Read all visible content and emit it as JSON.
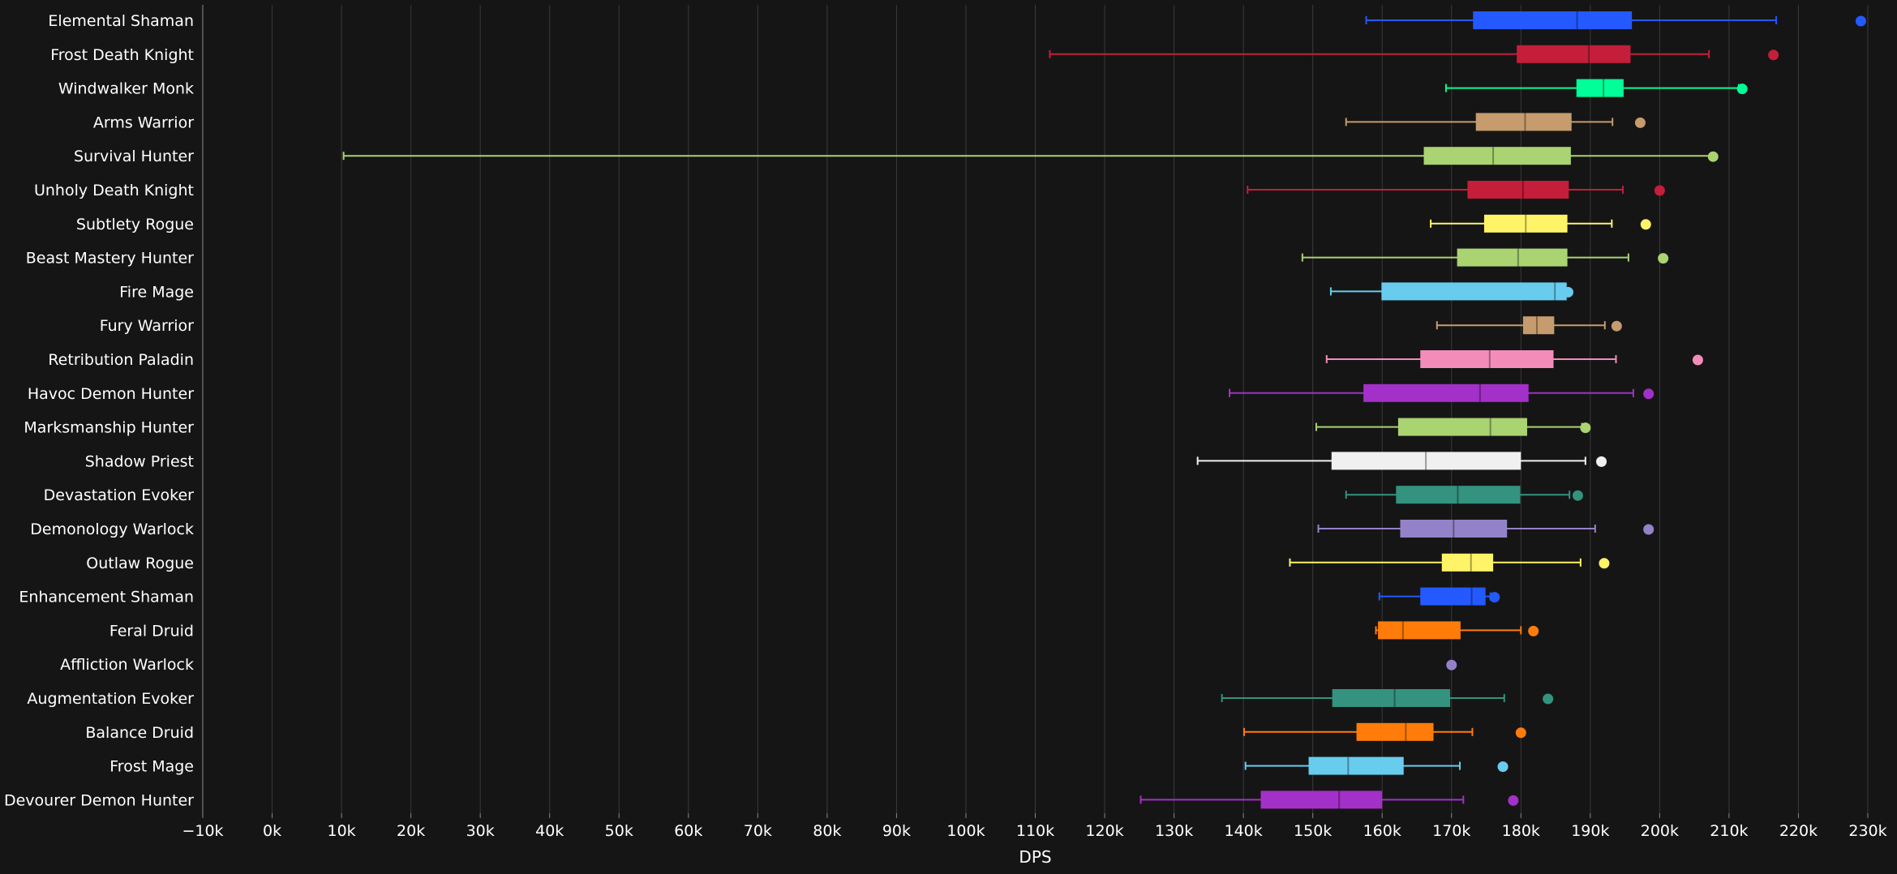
{
  "chart_data": {
    "type": "boxplot",
    "orientation": "horizontal",
    "xlabel": "DPS",
    "xlim": [
      -10000,
      230000
    ],
    "xticks": [
      {
        "value": -10000,
        "label": "−10k"
      },
      {
        "value": 0,
        "label": "0k"
      },
      {
        "value": 10000,
        "label": "10k"
      },
      {
        "value": 20000,
        "label": "20k"
      },
      {
        "value": 30000,
        "label": "30k"
      },
      {
        "value": 40000,
        "label": "40k"
      },
      {
        "value": 50000,
        "label": "50k"
      },
      {
        "value": 60000,
        "label": "60k"
      },
      {
        "value": 70000,
        "label": "70k"
      },
      {
        "value": 80000,
        "label": "80k"
      },
      {
        "value": 90000,
        "label": "90k"
      },
      {
        "value": 100000,
        "label": "100k"
      },
      {
        "value": 110000,
        "label": "110k"
      },
      {
        "value": 120000,
        "label": "120k"
      },
      {
        "value": 130000,
        "label": "130k"
      },
      {
        "value": 140000,
        "label": "140k"
      },
      {
        "value": 150000,
        "label": "150k"
      },
      {
        "value": 160000,
        "label": "160k"
      },
      {
        "value": 170000,
        "label": "170k"
      },
      {
        "value": 180000,
        "label": "180k"
      },
      {
        "value": 190000,
        "label": "190k"
      },
      {
        "value": 200000,
        "label": "200k"
      },
      {
        "value": 210000,
        "label": "210k"
      },
      {
        "value": 220000,
        "label": "220k"
      },
      {
        "value": 230000,
        "label": "230k"
      }
    ],
    "grid": true,
    "background": "#151515",
    "series": [
      {
        "name": "Elemental Shaman",
        "color": "#2459ff",
        "min": 157700,
        "q1": 173100,
        "median": 188100,
        "q3": 196000,
        "max": 216800,
        "point": 229000
      },
      {
        "name": "Frost Death Knight",
        "color": "#c41e3a",
        "min": 112100,
        "q1": 179400,
        "median": 189800,
        "q3": 195800,
        "max": 207100,
        "point": 216400
      },
      {
        "name": "Windwalker Monk",
        "color": "#00ff98",
        "min": 169200,
        "q1": 188000,
        "median": 191900,
        "q3": 194800,
        "max": 211400,
        "point": 211900
      },
      {
        "name": "Arms Warrior",
        "color": "#c69b6d",
        "min": 154800,
        "q1": 173500,
        "median": 180600,
        "q3": 187300,
        "max": 193200,
        "point": 197200
      },
      {
        "name": "Survival Hunter",
        "color": "#aad372",
        "min": 10300,
        "q1": 166000,
        "median": 176000,
        "q3": 187200,
        "max": 207500,
        "point": 207700
      },
      {
        "name": "Unholy Death Knight",
        "color": "#c41e3a",
        "min": 140600,
        "q1": 172300,
        "median": 180300,
        "q3": 186900,
        "max": 194700,
        "point": 200000
      },
      {
        "name": "Subtlety Rogue",
        "color": "#fff468",
        "min": 167000,
        "q1": 174700,
        "median": 180700,
        "q3": 186700,
        "max": 193100,
        "point": 198000
      },
      {
        "name": "Beast Mastery Hunter",
        "color": "#aad372",
        "min": 148500,
        "q1": 170800,
        "median": 179600,
        "q3": 186700,
        "max": 195500,
        "point": 200500
      },
      {
        "name": "Fire Mage",
        "color": "#68ccef",
        "min": 152600,
        "q1": 159900,
        "median": 184900,
        "q3": 186600,
        "max": 186800,
        "point": 186800
      },
      {
        "name": "Fury Warrior",
        "color": "#c69b6d",
        "min": 167900,
        "q1": 180300,
        "median": 182300,
        "q3": 184800,
        "max": 192100,
        "point": 193800
      },
      {
        "name": "Retribution Paladin",
        "color": "#f48cba",
        "min": 152000,
        "q1": 165500,
        "median": 175500,
        "q3": 184700,
        "max": 193700,
        "point": 205500
      },
      {
        "name": "Havoc Demon Hunter",
        "color": "#a330c9",
        "min": 138000,
        "q1": 157300,
        "median": 174100,
        "q3": 181100,
        "max": 196200,
        "point": 198400
      },
      {
        "name": "Marksmanship Hunter",
        "color": "#aad372",
        "min": 150500,
        "q1": 162300,
        "median": 175600,
        "q3": 180900,
        "max": 188800,
        "point": 189300
      },
      {
        "name": "Shadow Priest",
        "color": "#f0f0f0",
        "min": 133400,
        "q1": 152700,
        "median": 166300,
        "q3": 180000,
        "max": 189300,
        "point": 191600
      },
      {
        "name": "Devastation Evoker",
        "color": "#33937f",
        "min": 154800,
        "q1": 162000,
        "median": 170900,
        "q3": 179900,
        "max": 187000,
        "point": 188200
      },
      {
        "name": "Demonology Warlock",
        "color": "#9482c9",
        "min": 150800,
        "q1": 162600,
        "median": 170300,
        "q3": 178000,
        "max": 190700,
        "point": 198400
      },
      {
        "name": "Outlaw Rogue",
        "color": "#fff468",
        "min": 146700,
        "q1": 168600,
        "median": 172800,
        "q3": 176000,
        "max": 188600,
        "point": 192000
      },
      {
        "name": "Enhancement Shaman",
        "color": "#2459ff",
        "min": 159600,
        "q1": 165500,
        "median": 172900,
        "q3": 174900,
        "max": 175600,
        "point": 176200
      },
      {
        "name": "Feral Druid",
        "color": "#ff7c0a",
        "min": 159100,
        "q1": 159400,
        "median": 163000,
        "q3": 171300,
        "max": 180000,
        "point": 181800
      },
      {
        "name": "Affliction Warlock",
        "color": "#9482c9",
        "min": null,
        "q1": null,
        "median": null,
        "q3": null,
        "max": null,
        "point": 170000
      },
      {
        "name": "Augmentation Evoker",
        "color": "#33937f",
        "min": 136900,
        "q1": 152800,
        "median": 161800,
        "q3": 169800,
        "max": 177600,
        "point": 183900
      },
      {
        "name": "Balance Druid",
        "color": "#ff7c0a",
        "min": 140100,
        "q1": 156300,
        "median": 163400,
        "q3": 167400,
        "max": 173000,
        "point": 180000
      },
      {
        "name": "Frost Mage",
        "color": "#68ccef",
        "min": 140300,
        "q1": 149400,
        "median": 155100,
        "q3": 163100,
        "max": 171200,
        "point": 177400
      },
      {
        "name": "Devourer Demon Hunter",
        "color": "#a330c9",
        "min": 125200,
        "q1": 142500,
        "median": 153800,
        "q3": 160000,
        "max": 171700,
        "point": 178900
      }
    ]
  }
}
